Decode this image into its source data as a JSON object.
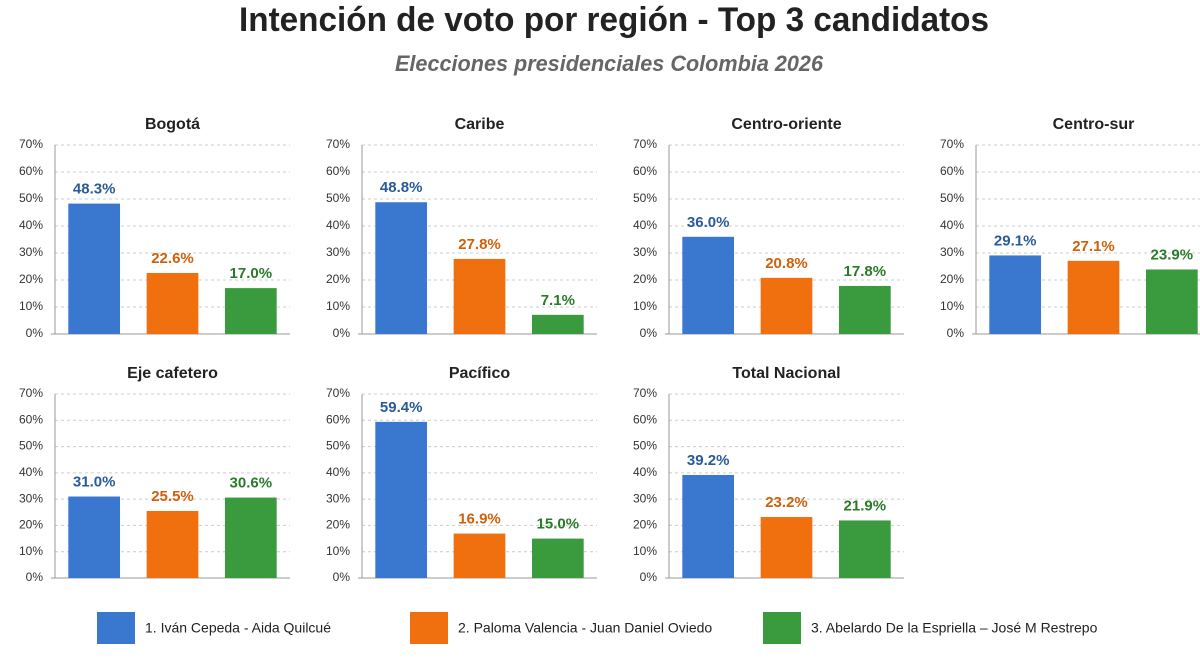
{
  "title": "Intención de voto por región - Top 3 candidatos",
  "subtitle": "Elecciones presidenciales Colombia 2026",
  "legend": {
    "series": [
      {
        "name": "1. Iván Cepeda - Aida Quilcué",
        "color": "#3a78d0",
        "label_color": "#2a5a9a"
      },
      {
        "name": "2. Paloma Valencia - Juan Daniel Oviedo",
        "color": "#f07010",
        "label_color": "#d0600a"
      },
      {
        "name": "3. Abelardo De la Espriella – José M Restrepo",
        "color": "#3a9a3e",
        "label_color": "#2a7a2a"
      }
    ]
  },
  "chart_data": [
    {
      "type": "bar",
      "title": "Bogotá",
      "values": [
        48.3,
        22.6,
        17.0
      ],
      "value_labels": [
        "48.3%",
        "22.6%",
        "17.0%"
      ],
      "ylim": [
        0,
        70
      ],
      "yticks": [
        {
          "value": 0,
          "label": "0%"
        },
        {
          "value": 10,
          "label": "10%"
        },
        {
          "value": 20,
          "label": "20%"
        },
        {
          "value": 30,
          "label": "30%"
        },
        {
          "value": 40,
          "label": "40%"
        },
        {
          "value": 50,
          "label": "50%"
        },
        {
          "value": 60,
          "label": "60%"
        },
        {
          "value": 70,
          "label": "70%"
        }
      ],
      "grid": true
    },
    {
      "type": "bar",
      "title": "Caribe",
      "values": [
        48.8,
        27.8,
        7.1
      ],
      "value_labels": [
        "48.8%",
        "27.8%",
        "7.1%"
      ],
      "ylim": [
        0,
        70
      ],
      "yticks": [
        {
          "value": 0,
          "label": "0%"
        },
        {
          "value": 10,
          "label": "10%"
        },
        {
          "value": 20,
          "label": "20%"
        },
        {
          "value": 30,
          "label": "30%"
        },
        {
          "value": 40,
          "label": "40%"
        },
        {
          "value": 50,
          "label": "50%"
        },
        {
          "value": 60,
          "label": "60%"
        },
        {
          "value": 70,
          "label": "70%"
        }
      ],
      "grid": true
    },
    {
      "type": "bar",
      "title": "Centro-oriente",
      "values": [
        36.0,
        20.8,
        17.8
      ],
      "value_labels": [
        "36.0%",
        "20.8%",
        "17.8%"
      ],
      "ylim": [
        0,
        70
      ],
      "yticks": [
        {
          "value": 0,
          "label": "0%"
        },
        {
          "value": 10,
          "label": "10%"
        },
        {
          "value": 20,
          "label": "20%"
        },
        {
          "value": 30,
          "label": "30%"
        },
        {
          "value": 40,
          "label": "40%"
        },
        {
          "value": 50,
          "label": "50%"
        },
        {
          "value": 60,
          "label": "60%"
        },
        {
          "value": 70,
          "label": "70%"
        }
      ],
      "grid": true
    },
    {
      "type": "bar",
      "title": "Centro-sur",
      "values": [
        29.1,
        27.1,
        23.9
      ],
      "value_labels": [
        "29.1%",
        "27.1%",
        "23.9%"
      ],
      "ylim": [
        0,
        70
      ],
      "yticks": [
        {
          "value": 0,
          "label": "0%"
        },
        {
          "value": 10,
          "label": "10%"
        },
        {
          "value": 20,
          "label": "20%"
        },
        {
          "value": 30,
          "label": "30%"
        },
        {
          "value": 40,
          "label": "40%"
        },
        {
          "value": 50,
          "label": "50%"
        },
        {
          "value": 60,
          "label": "60%"
        },
        {
          "value": 70,
          "label": "70%"
        }
      ],
      "grid": true
    },
    {
      "type": "bar",
      "title": "Eje cafetero",
      "values": [
        31.0,
        25.5,
        30.6
      ],
      "value_labels": [
        "31.0%",
        "25.5%",
        "30.6%"
      ],
      "ylim": [
        0,
        70
      ],
      "yticks": [
        {
          "value": 0,
          "label": "0%"
        },
        {
          "value": 10,
          "label": "10%"
        },
        {
          "value": 20,
          "label": "20%"
        },
        {
          "value": 30,
          "label": "30%"
        },
        {
          "value": 40,
          "label": "40%"
        },
        {
          "value": 50,
          "label": "50%"
        },
        {
          "value": 60,
          "label": "60%"
        },
        {
          "value": 70,
          "label": "70%"
        }
      ],
      "grid": true
    },
    {
      "type": "bar",
      "title": "Pacífico",
      "values": [
        59.4,
        16.9,
        15.0
      ],
      "value_labels": [
        "59.4%",
        "16.9%",
        "15.0%"
      ],
      "ylim": [
        0,
        70
      ],
      "yticks": [
        {
          "value": 0,
          "label": "0%"
        },
        {
          "value": 10,
          "label": "10%"
        },
        {
          "value": 20,
          "label": "20%"
        },
        {
          "value": 30,
          "label": "30%"
        },
        {
          "value": 40,
          "label": "40%"
        },
        {
          "value": 50,
          "label": "50%"
        },
        {
          "value": 60,
          "label": "60%"
        },
        {
          "value": 70,
          "label": "70%"
        }
      ],
      "grid": true
    },
    {
      "type": "bar",
      "title": "Total Nacional",
      "values": [
        39.2,
        23.2,
        21.9
      ],
      "value_labels": [
        "39.2%",
        "23.2%",
        "21.9%"
      ],
      "ylim": [
        0,
        70
      ],
      "yticks": [
        {
          "value": 0,
          "label": "0%"
        },
        {
          "value": 10,
          "label": "10%"
        },
        {
          "value": 20,
          "label": "20%"
        },
        {
          "value": 30,
          "label": "30%"
        },
        {
          "value": 40,
          "label": "40%"
        },
        {
          "value": 50,
          "label": "50%"
        },
        {
          "value": 60,
          "label": "60%"
        },
        {
          "value": 70,
          "label": "70%"
        }
      ],
      "grid": true
    }
  ]
}
